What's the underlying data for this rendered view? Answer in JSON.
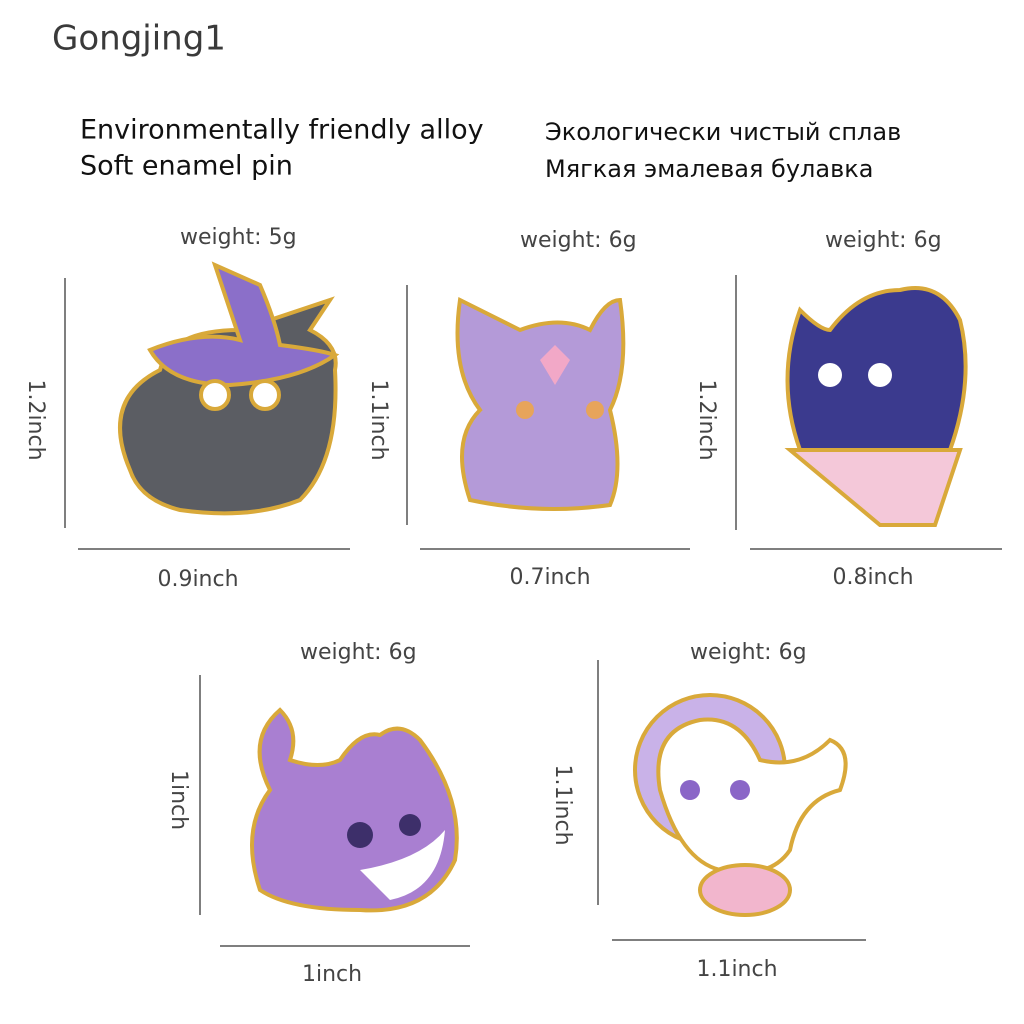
{
  "watermark": "Gongjing1",
  "headline": {
    "en": [
      "Environmentally friendly alloy",
      "Soft enamel pin"
    ],
    "ru": [
      "Экологически чистый сплав",
      "Мягкая эмалевая булавка"
    ]
  },
  "pins": [
    {
      "weight": "weight: 5g",
      "height": "1.2inch",
      "width": "0.9inch"
    },
    {
      "weight": "weight: 6g",
      "height": "1.1inch",
      "width": "0.7inch"
    },
    {
      "weight": "weight: 6g",
      "height": "1.2inch",
      "width": "0.8inch"
    },
    {
      "weight": "weight: 6g",
      "height": "1inch",
      "width": "1inch"
    },
    {
      "weight": "weight: 6g",
      "height": "1.1inch",
      "width": "1.1inch"
    }
  ]
}
